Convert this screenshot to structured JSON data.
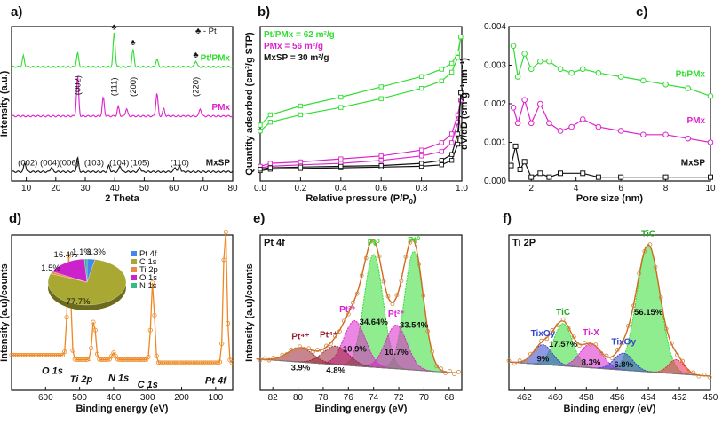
{
  "chart_data": [
    {
      "panel": "a)",
      "type": "line",
      "title": "",
      "xlabel": "2 Theta",
      "ylabel": "Intensity (a.u.)",
      "xlim": [
        5,
        80
      ],
      "xticks": [
        10,
        20,
        30,
        40,
        50,
        60,
        70,
        80
      ],
      "legend_marker": "♣ - Pt",
      "pt_marker": "♣",
      "series": [
        {
          "name": "Pt/PMx",
          "color": "#33dd33",
          "offset": 0.74,
          "peaks": [
            [
              9,
              0.07
            ],
            [
              27.4,
              0.09
            ],
            [
              39.8,
              0.22
            ],
            [
              46.2,
              0.11
            ],
            [
              54.3,
              0.05
            ],
            [
              67.5,
              0.04
            ]
          ]
        },
        {
          "name": "PMx",
          "color": "#dd22cc",
          "offset": 0.42,
          "peaks": [
            [
              27.4,
              0.26
            ],
            [
              36.1,
              0.12
            ],
            [
              41.2,
              0.06
            ],
            [
              44,
              0.05
            ],
            [
              54.3,
              0.15
            ],
            [
              56.6,
              0.05
            ],
            [
              69,
              0.05
            ]
          ]
        },
        {
          "name": "MxSP",
          "color": "#111111",
          "offset": 0.06,
          "peaks": [
            [
              9.5,
              0.06
            ],
            [
              18.5,
              0.03
            ],
            [
              27.4,
              0.09
            ],
            [
              38,
              0.04
            ],
            [
              41.8,
              0.04
            ],
            [
              48.5,
              0.03
            ],
            [
              60.5,
              0.03
            ],
            [
              62,
              0.04
            ]
          ]
        }
      ],
      "annotations": [
        "(002)",
        "(111)",
        "(200)",
        "(220)",
        "(002)",
        "(004)",
        "(006)",
        "(103)",
        "(104)",
        "(105)",
        "(110)"
      ]
    },
    {
      "panel": "b)",
      "type": "line",
      "xlabel": "Relative pressure (P/P",
      "xlabel_sub": "0",
      "xlabel_end": ")",
      "ylabel": "Quantity adsorbed (cm³/g STP)",
      "xlim": [
        0,
        1.0
      ],
      "xticks": [
        0.0,
        0.2,
        0.4,
        0.6,
        0.8,
        1.0
      ],
      "legend": [
        {
          "label": "Pt/PMx = 62 m²/g",
          "color": "#33dd33"
        },
        {
          "label": "PMx = 56 m²/g",
          "color": "#dd22cc"
        },
        {
          "label": "MxSP = 30 m²/g",
          "color": "#111111"
        }
      ],
      "series": [
        {
          "name": "Pt/PMx",
          "color": "#33dd33",
          "x": [
            0.0,
            0.05,
            0.2,
            0.4,
            0.6,
            0.8,
            0.9,
            0.95,
            0.98,
            0.995
          ],
          "adsorption": [
            0.34,
            0.4,
            0.45,
            0.5,
            0.56,
            0.63,
            0.68,
            0.74,
            0.84,
            0.98
          ],
          "desorption": [
            0.38,
            0.45,
            0.51,
            0.57,
            0.64,
            0.71,
            0.76,
            0.8,
            0.87,
            0.98
          ]
        },
        {
          "name": "PMx",
          "color": "#dd22cc",
          "x": [
            0.0,
            0.05,
            0.2,
            0.4,
            0.6,
            0.8,
            0.9,
            0.95,
            0.98,
            0.995
          ],
          "adsorption": [
            0.09,
            0.1,
            0.11,
            0.12,
            0.14,
            0.17,
            0.2,
            0.26,
            0.4,
            0.55
          ],
          "desorption": [
            0.1,
            0.12,
            0.13,
            0.15,
            0.17,
            0.21,
            0.26,
            0.32,
            0.45,
            0.55
          ]
        },
        {
          "name": "MxSP",
          "color": "#111111",
          "x": [
            0.0,
            0.05,
            0.2,
            0.4,
            0.6,
            0.8,
            0.9,
            0.95,
            0.98,
            0.995
          ],
          "adsorption": [
            0.07,
            0.08,
            0.085,
            0.09,
            0.095,
            0.1,
            0.11,
            0.14,
            0.25,
            0.6
          ],
          "desorption": [
            0.08,
            0.09,
            0.095,
            0.1,
            0.105,
            0.12,
            0.14,
            0.18,
            0.32,
            0.6
          ]
        }
      ]
    },
    {
      "panel": "c)",
      "type": "line",
      "xlabel": "Pore size (nm)",
      "ylabel": "dV/dD (cm³g⁻¹nm⁻¹)",
      "xlim": [
        1,
        10
      ],
      "ylim": [
        0,
        0.004
      ],
      "xticks": [
        2,
        4,
        6,
        8,
        10
      ],
      "yticks": [
        0.0,
        0.001,
        0.002,
        0.003,
        0.004
      ],
      "series": [
        {
          "name": "Pt/PMx",
          "color": "#33dd33",
          "x": [
            1.2,
            1.4,
            1.7,
            2.0,
            2.4,
            2.8,
            3.3,
            3.8,
            4.3,
            5.0,
            6.0,
            7.0,
            8.0,
            9.0,
            10.0
          ],
          "y": [
            0.0035,
            0.0027,
            0.0033,
            0.0029,
            0.0031,
            0.0031,
            0.0029,
            0.0028,
            0.0029,
            0.0028,
            0.0027,
            0.0026,
            0.0025,
            0.0024,
            0.0022
          ]
        },
        {
          "name": "PMx",
          "color": "#dd22cc",
          "x": [
            1.2,
            1.4,
            1.7,
            2.0,
            2.4,
            2.8,
            3.3,
            3.8,
            4.3,
            5.0,
            6.0,
            7.0,
            8.0,
            9.0,
            10.0
          ],
          "y": [
            0.0019,
            0.0015,
            0.0021,
            0.0015,
            0.002,
            0.0015,
            0.0013,
            0.0014,
            0.0016,
            0.0014,
            0.0013,
            0.0012,
            0.0012,
            0.0011,
            0.001
          ]
        },
        {
          "name": "MxSP",
          "color": "#111111",
          "x": [
            1.1,
            1.3,
            1.5,
            1.7,
            2.0,
            2.4,
            2.8,
            3.3,
            4.3,
            5.0,
            6.0,
            8.0,
            10.0
          ],
          "y": [
            0.0004,
            0.0009,
            0.0003,
            0.0005,
            0.0001,
            0.0002,
            0.0001,
            0.0002,
            0.0002,
            0.0001,
            0.0001,
            0.0001,
            0.0001
          ]
        }
      ]
    },
    {
      "panel": "d)",
      "type": "line",
      "xlabel": "Binding energy (eV)",
      "ylabel": "Intensity (a.u)/counts",
      "xlim": [
        700,
        50
      ],
      "xticks": [
        600,
        500,
        400,
        300,
        200,
        100
      ],
      "peak_labels": [
        "O 1s",
        "Ti 2p",
        "N 1s",
        "C 1s",
        "Pt 4f"
      ],
      "series": [
        {
          "name": "Survey",
          "color": "#ee8822",
          "peaks": [
            [
              531,
              0.75
            ],
            [
              458,
              0.3
            ],
            [
              400,
              0.05
            ],
            [
              285,
              0.58
            ],
            [
              72,
              1.05
            ]
          ]
        }
      ],
      "inset_pie": {
        "type": "pie",
        "slices": [
          {
            "label": "Pt 4f",
            "value": 3.3,
            "color": "#4488ee"
          },
          {
            "label": "C 1s",
            "value": 77.7,
            "color": "#a8a832"
          },
          {
            "label": "Ti 2p",
            "value": 1.5,
            "color": "#ee8844"
          },
          {
            "label": "O 1s",
            "value": 16.4,
            "color": "#cc22cc"
          },
          {
            "label": "N 1s",
            "value": 1.1,
            "color": "#33bb88"
          }
        ],
        "slice_labels": [
          "3.3%",
          "77.7%",
          "1.5%",
          "16.4%",
          "1.1%"
        ]
      }
    },
    {
      "panel": "e)",
      "type": "line",
      "title": "Pt 4f",
      "xlabel": "Binding energy (eV)",
      "ylabel": "Intensity (a.u)/counts",
      "xlim": [
        83,
        67
      ],
      "xticks": [
        82,
        80,
        78,
        76,
        74,
        72,
        70,
        68
      ],
      "components": [
        {
          "label": "Pt⁰",
          "center": 74.0,
          "height": 0.8,
          "width": 0.75,
          "color": "#33dd33",
          "pct": "34.64%"
        },
        {
          "label": "Pt⁰",
          "center": 70.8,
          "height": 0.84,
          "width": 0.75,
          "color": "#33dd33",
          "pct": "33.54%"
        },
        {
          "label": "Pt²⁺",
          "center": 75.5,
          "height": 0.32,
          "width": 0.85,
          "color": "#dd22cc",
          "pct": "10.9%"
        },
        {
          "label": "Pt²⁺",
          "center": 72.2,
          "height": 0.31,
          "width": 0.85,
          "color": "#dd22cc",
          "pct": "10.7%"
        },
        {
          "label": "Pt⁴⁺",
          "center": 79.8,
          "height": 0.1,
          "width": 1.0,
          "color": "#992233",
          "pct": "3.9%"
        },
        {
          "label": "Pt⁴⁺",
          "center": 77.0,
          "height": 0.13,
          "width": 1.0,
          "color": "#992233",
          "pct": "4.8%"
        }
      ]
    },
    {
      "panel": "f)",
      "type": "line",
      "title": "Ti 2P",
      "xlabel": "Binding energy (eV)",
      "ylabel": "",
      "xlim": [
        463,
        450
      ],
      "xticks": [
        462,
        460,
        458,
        456,
        454,
        452,
        450
      ],
      "components": [
        {
          "label": "TiC",
          "center": 454.0,
          "height": 0.9,
          "width": 0.75,
          "color": "#33dd33",
          "pct": "56.15%"
        },
        {
          "label": "TiC",
          "center": 459.5,
          "height": 0.3,
          "width": 0.6,
          "color": "#33dd33",
          "pct": "17.57%"
        },
        {
          "label": "Ti-X",
          "center": 457.7,
          "height": 0.17,
          "width": 0.7,
          "color": "#dd22cc",
          "pct": "8.3%"
        },
        {
          "label": "TixOy",
          "center": 455.6,
          "height": 0.12,
          "width": 0.6,
          "color": "#3344cc",
          "pct": "6.8%"
        },
        {
          "label": "TixOy",
          "center": 460.8,
          "height": 0.14,
          "width": 0.6,
          "color": "#3344cc",
          "pct": "9%"
        },
        {
          "label": "",
          "center": 452.2,
          "height": 0.1,
          "width": 0.5,
          "color": "#ee2255",
          "pct": ""
        }
      ]
    }
  ]
}
